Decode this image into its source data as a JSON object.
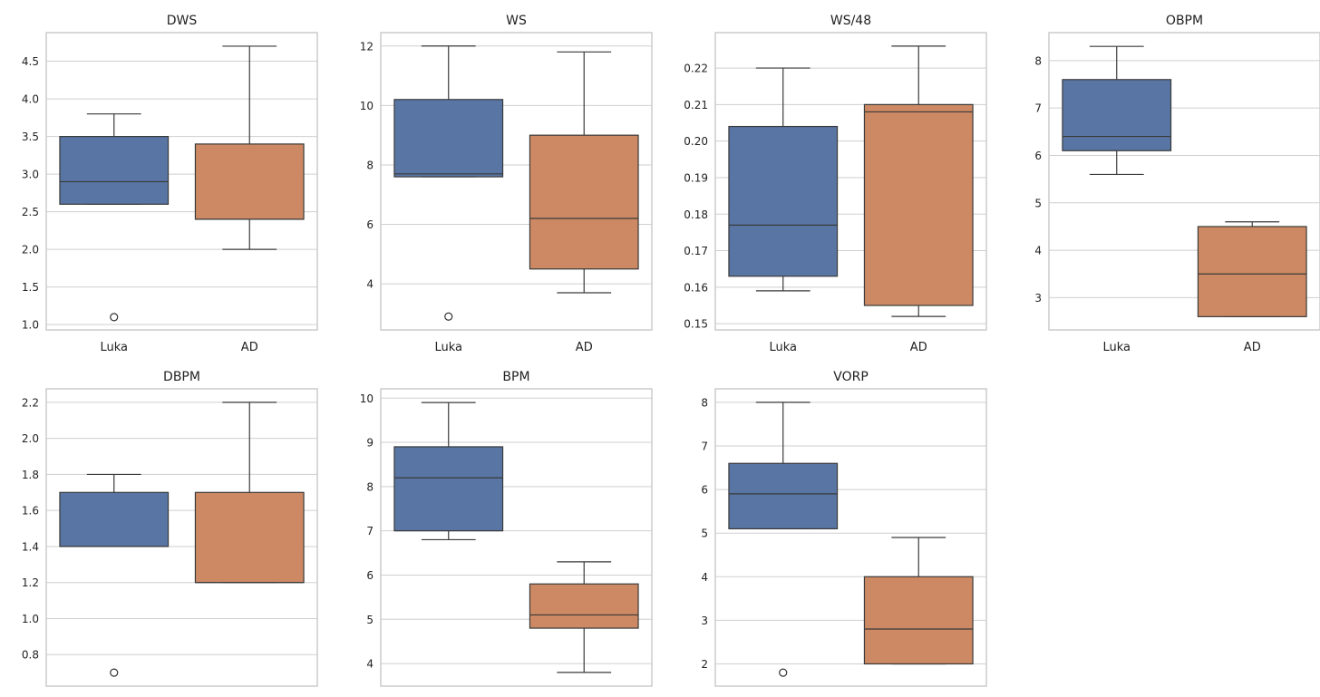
{
  "colors": {
    "luka": "#5875a4",
    "ad": "#cc8963",
    "grid": "#cfcfcf",
    "frame": "#cccccc",
    "line": "#3a3a3a"
  },
  "chart_data": [
    {
      "type": "box",
      "title": "DWS",
      "categories": [
        "Luka",
        "AD"
      ],
      "ylim": [
        0.93,
        4.88
      ],
      "yticks": [
        1.0,
        1.5,
        2.0,
        2.5,
        3.0,
        3.5,
        4.0,
        4.5
      ],
      "decimals": 1,
      "boxes": [
        {
          "name": "Luka",
          "whislo": 2.6,
          "q1": 2.6,
          "med": 2.9,
          "q3": 3.5,
          "whishi": 3.8,
          "fliers": [
            1.1
          ]
        },
        {
          "name": "AD",
          "whislo": 2.0,
          "q1": 2.4,
          "med": 2.4,
          "q3": 3.4,
          "whishi": 4.7,
          "fliers": []
        }
      ]
    },
    {
      "type": "box",
      "title": "WS",
      "categories": [
        "Luka",
        "AD"
      ],
      "ylim": [
        2.45,
        12.45
      ],
      "yticks": [
        4,
        6,
        8,
        10,
        12
      ],
      "decimals": 0,
      "boxes": [
        {
          "name": "Luka",
          "whislo": 7.6,
          "q1": 7.6,
          "med": 7.7,
          "q3": 10.2,
          "whishi": 12.0,
          "fliers": [
            2.9
          ]
        },
        {
          "name": "AD",
          "whislo": 3.7,
          "q1": 4.5,
          "med": 6.2,
          "q3": 9.0,
          "whishi": 11.8,
          "fliers": []
        }
      ]
    },
    {
      "type": "box",
      "title": "WS/48",
      "categories": [
        "Luka",
        "AD"
      ],
      "ylim": [
        0.1483,
        0.2297
      ],
      "yticks": [
        0.15,
        0.16,
        0.17,
        0.18,
        0.19,
        0.2,
        0.21,
        0.22
      ],
      "decimals": 2,
      "boxes": [
        {
          "name": "Luka",
          "whislo": 0.159,
          "q1": 0.163,
          "med": 0.177,
          "q3": 0.204,
          "whishi": 0.22,
          "fliers": []
        },
        {
          "name": "AD",
          "whislo": 0.152,
          "q1": 0.155,
          "med": 0.208,
          "q3": 0.21,
          "whishi": 0.226,
          "fliers": []
        }
      ]
    },
    {
      "type": "box",
      "title": "OBPM",
      "categories": [
        "Luka",
        "AD"
      ],
      "ylim": [
        2.32,
        8.59
      ],
      "yticks": [
        3,
        4,
        5,
        6,
        7,
        8
      ],
      "decimals": 0,
      "boxes": [
        {
          "name": "Luka",
          "whislo": 5.6,
          "q1": 6.1,
          "med": 6.4,
          "q3": 7.6,
          "whishi": 8.3,
          "fliers": []
        },
        {
          "name": "AD",
          "whislo": 2.6,
          "q1": 2.6,
          "med": 3.5,
          "q3": 4.5,
          "whishi": 4.6,
          "fliers": []
        }
      ]
    },
    {
      "type": "box",
      "title": "DBPM",
      "categories": [
        "Luka",
        "AD"
      ],
      "ylim": [
        0.625,
        2.275
      ],
      "yticks": [
        0.8,
        1.0,
        1.2,
        1.4,
        1.6,
        1.8,
        2.0,
        2.2
      ],
      "decimals": 1,
      "boxes": [
        {
          "name": "Luka",
          "whislo": 1.4,
          "q1": 1.4,
          "med": 1.4,
          "q3": 1.7,
          "whishi": 1.8,
          "fliers": [
            0.7
          ]
        },
        {
          "name": "AD",
          "whislo": 1.2,
          "q1": 1.2,
          "med": 1.2,
          "q3": 1.7,
          "whishi": 2.2,
          "fliers": []
        }
      ]
    },
    {
      "type": "box",
      "title": "BPM",
      "categories": [
        "Luka",
        "AD"
      ],
      "ylim": [
        3.49,
        10.21
      ],
      "yticks": [
        4,
        5,
        6,
        7,
        8,
        9,
        10
      ],
      "decimals": 0,
      "boxes": [
        {
          "name": "Luka",
          "whislo": 6.8,
          "q1": 7.0,
          "med": 8.2,
          "q3": 8.9,
          "whishi": 9.9,
          "fliers": []
        },
        {
          "name": "AD",
          "whislo": 3.8,
          "q1": 4.8,
          "med": 5.1,
          "q3": 5.8,
          "whishi": 6.3,
          "fliers": []
        }
      ]
    },
    {
      "type": "box",
      "title": "VORP",
      "categories": [
        "Luka",
        "AD"
      ],
      "ylim": [
        1.49,
        8.31
      ],
      "yticks": [
        2,
        3,
        4,
        5,
        6,
        7,
        8
      ],
      "decimals": 0,
      "boxes": [
        {
          "name": "Luka",
          "whislo": 5.1,
          "q1": 5.1,
          "med": 5.9,
          "q3": 6.6,
          "whishi": 8.0,
          "fliers": [
            1.8
          ]
        },
        {
          "name": "AD",
          "whislo": 2.0,
          "q1": 2.0,
          "med": 2.8,
          "q3": 4.0,
          "whishi": 4.9,
          "fliers": []
        }
      ]
    }
  ]
}
